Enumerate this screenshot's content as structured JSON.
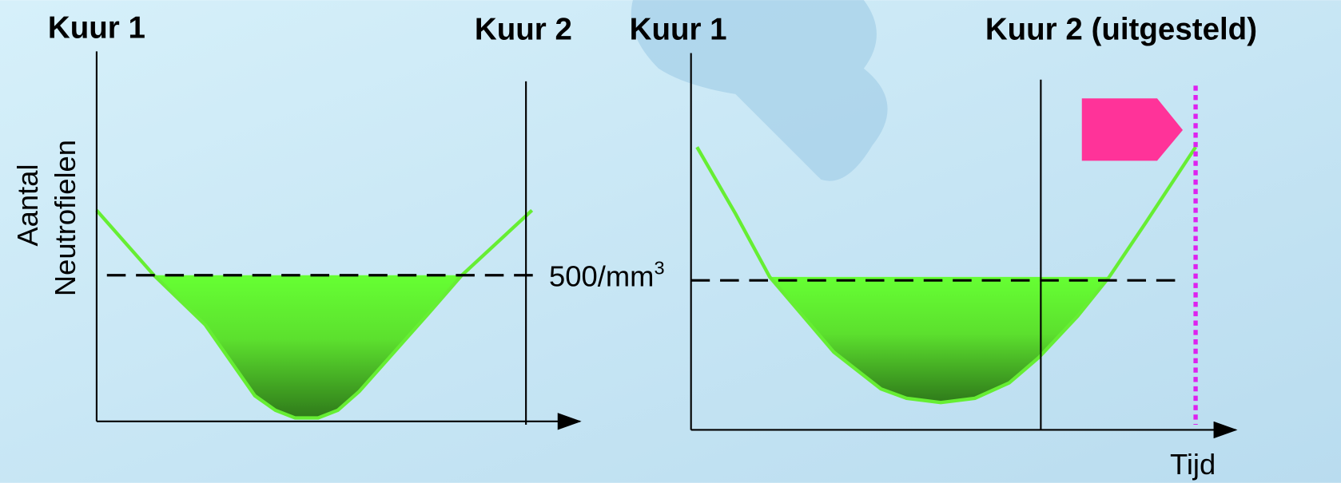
{
  "left_panel": {
    "start_label": "Kuur 1",
    "end_label": "Kuur 2"
  },
  "right_panel": {
    "start_label": "Kuur 1",
    "end_label": "Kuur 2 (uitgesteld)"
  },
  "y_axis_label": [
    "Aantal",
    "Neutrofielen"
  ],
  "threshold_label": {
    "text": "500/mm",
    "superscript": "3"
  },
  "x_axis_label": "Tijd"
}
